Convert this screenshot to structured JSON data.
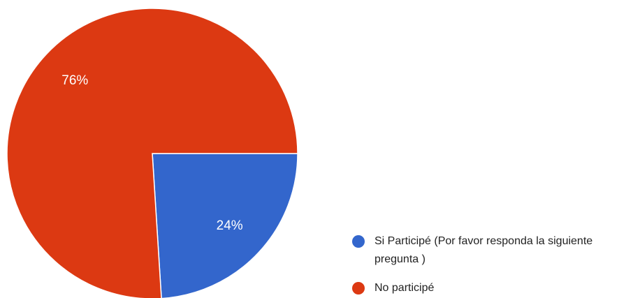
{
  "chart_data": {
    "type": "pie",
    "categories": [
      "Si Participé (Por favor responda la siguiente pregunta )",
      "No participé"
    ],
    "values": [
      24,
      76
    ],
    "value_labels": [
      "24%",
      "76%"
    ],
    "colors": [
      "#3366cc",
      "#dc3912"
    ]
  }
}
